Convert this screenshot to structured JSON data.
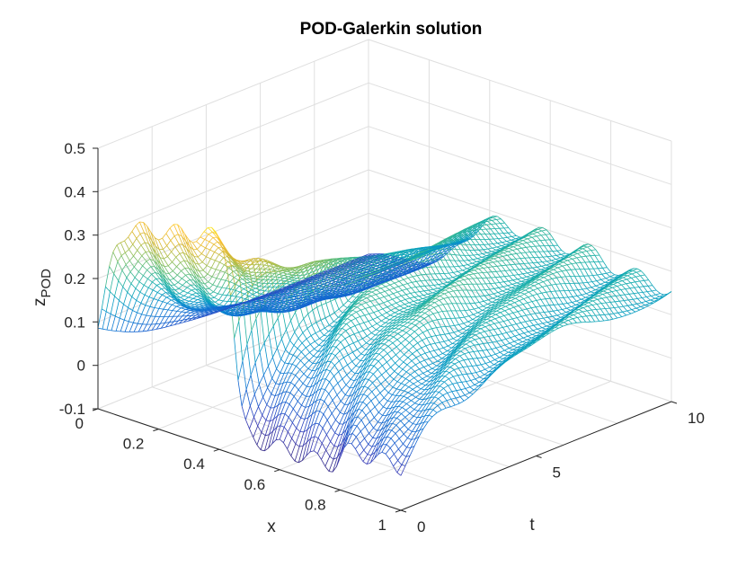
{
  "chart_data": {
    "type": "surface",
    "title": "POD-Galerkin solution",
    "xlabel": "x",
    "ylabel": "t",
    "zlabel": "z",
    "zlabel_sub": "POD",
    "xlim": [
      0,
      1
    ],
    "ylim": [
      0,
      10
    ],
    "zlim": [
      -0.1,
      0.5
    ],
    "x_ticks": [
      "0",
      "0.2",
      "0.4",
      "0.6",
      "0.8",
      "1"
    ],
    "y_ticks": [
      "0",
      "5",
      "10"
    ],
    "z_ticks": [
      "-0.1",
      "0",
      "0.1",
      "0.2",
      "0.3",
      "0.4",
      "0.5"
    ],
    "grid": true,
    "colormap": "parula",
    "description_of_surface": {
      "pulse_region_x": [
        0.0,
        0.45
      ],
      "pulse_peak_early_t": 0.4,
      "trough_region_x": [
        0.45,
        0.8
      ],
      "trough_value": -0.05,
      "late_plateau": 0.2,
      "right_edge_x": 1.0
    }
  }
}
